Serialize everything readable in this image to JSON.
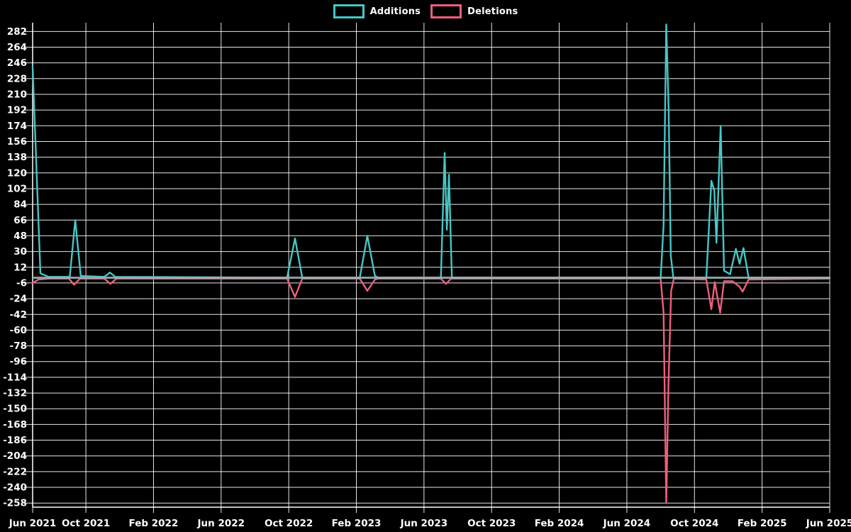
{
  "legend": {
    "items": [
      {
        "label": "Additions",
        "color": "#46c6c6"
      },
      {
        "label": "Deletions",
        "color": "#f05f7c"
      }
    ]
  },
  "colors": {
    "background": "#000000",
    "grid": "#ffffff",
    "axis": "#ffffff",
    "text": "#ffffff",
    "zero_line": "#98b2b6",
    "additions": "#46c6c6",
    "deletions": "#f05f7c"
  },
  "chart_data": {
    "type": "line",
    "title": "",
    "xlabel": "",
    "ylabel": "",
    "grid": true,
    "legend_position": "top-center",
    "x_axis": {
      "unit": "months since 2021-06-01",
      "range": [
        0.85,
        48
      ],
      "tick_positions": [
        0.85,
        4,
        8,
        12,
        16,
        20,
        24,
        28,
        32,
        36,
        40,
        44,
        48
      ],
      "tick_labels": [
        "Jun 2021",
        "Oct 2021",
        "Feb 2022",
        "Jun 2022",
        "Oct 2022",
        "Feb 2023",
        "Jun 2023",
        "Oct 2023",
        "Feb 2024",
        "Jun 2024",
        "Oct 2024",
        "Feb 2025",
        "Jun 2025"
      ]
    },
    "y_axis": {
      "range": [
        -262.7,
        292
      ],
      "tick_min": -258,
      "tick_max": 282,
      "tick_step": 18,
      "tick_labels": [
        "282",
        "264",
        "246",
        "228",
        "210",
        "192",
        "174",
        "156",
        "138",
        "120",
        "102",
        "84",
        "66",
        "48",
        "30",
        "12",
        "-6",
        "-24",
        "-42",
        "-60",
        "-78",
        "-96",
        "-114",
        "-132",
        "-150",
        "-168",
        "-186",
        "-204",
        "-222",
        "-240",
        "-258"
      ]
    },
    "series": [
      {
        "name": "Additions",
        "color": "#46c6c6",
        "points": [
          [
            0.85,
            242
          ],
          [
            1.31,
            5
          ],
          [
            1.8,
            1
          ],
          [
            3.05,
            1
          ],
          [
            3.37,
            66
          ],
          [
            3.7,
            2
          ],
          [
            5.1,
            1
          ],
          [
            5.42,
            6
          ],
          [
            5.75,
            1
          ],
          [
            15.9,
            0
          ],
          [
            16.37,
            45
          ],
          [
            16.8,
            0
          ],
          [
            20.2,
            0
          ],
          [
            20.65,
            48
          ],
          [
            21.1,
            2
          ],
          [
            21.3,
            0
          ],
          [
            25.0,
            0
          ],
          [
            25.22,
            143
          ],
          [
            25.35,
            55
          ],
          [
            25.48,
            118
          ],
          [
            25.65,
            0
          ],
          [
            38.0,
            0
          ],
          [
            38.17,
            60
          ],
          [
            38.33,
            290
          ],
          [
            38.47,
            195
          ],
          [
            38.6,
            25
          ],
          [
            38.75,
            0
          ],
          [
            40.7,
            0
          ],
          [
            41.0,
            111
          ],
          [
            41.17,
            100
          ],
          [
            41.3,
            40
          ],
          [
            41.55,
            174
          ],
          [
            41.75,
            8
          ],
          [
            42.1,
            4
          ],
          [
            42.45,
            33
          ],
          [
            42.67,
            16
          ],
          [
            42.9,
            34
          ],
          [
            43.2,
            0
          ],
          [
            48,
            0
          ]
        ]
      },
      {
        "name": "Deletions",
        "color": "#f05f7c",
        "points": [
          [
            0.85,
            -6
          ],
          [
            1.2,
            -2
          ],
          [
            1.8,
            -1
          ],
          [
            3.0,
            -1
          ],
          [
            3.3,
            -8
          ],
          [
            3.65,
            -1
          ],
          [
            5.1,
            -1
          ],
          [
            5.45,
            -7
          ],
          [
            5.8,
            -1
          ],
          [
            15.9,
            -1
          ],
          [
            16.37,
            -22
          ],
          [
            16.8,
            -1
          ],
          [
            20.2,
            -1
          ],
          [
            20.65,
            -15
          ],
          [
            21.1,
            -2
          ],
          [
            21.3,
            -1
          ],
          [
            25.0,
            -1
          ],
          [
            25.3,
            -7
          ],
          [
            25.6,
            -1
          ],
          [
            38.0,
            -1
          ],
          [
            38.17,
            -40
          ],
          [
            38.33,
            -258
          ],
          [
            38.47,
            -116
          ],
          [
            38.62,
            -15
          ],
          [
            38.78,
            -1
          ],
          [
            40.7,
            -2
          ],
          [
            41.0,
            -36
          ],
          [
            41.2,
            -5
          ],
          [
            41.52,
            -40
          ],
          [
            41.75,
            -4
          ],
          [
            42.25,
            -4
          ],
          [
            42.65,
            -10
          ],
          [
            42.85,
            -16
          ],
          [
            43.2,
            -2
          ],
          [
            48,
            -1
          ]
        ]
      }
    ]
  }
}
